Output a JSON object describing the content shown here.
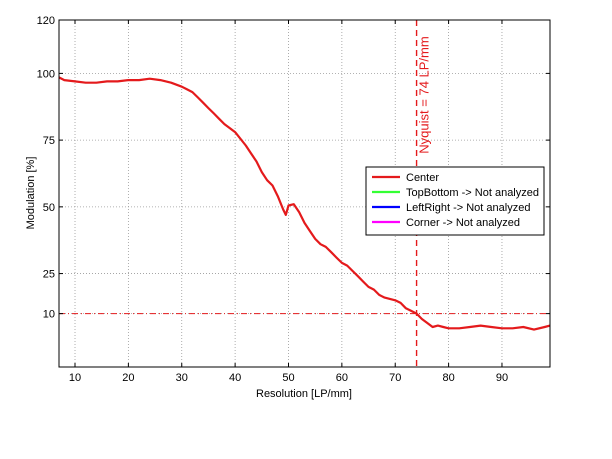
{
  "chart_data": {
    "type": "line",
    "xlabel": "Resolution [LP/mm]",
    "ylabel": "Modulation [%]",
    "xlim": [
      7,
      99
    ],
    "ylim": [
      -10,
      120
    ],
    "x_ticks": [
      10,
      20,
      30,
      40,
      50,
      60,
      70,
      80,
      90
    ],
    "y_ticks": [
      10,
      25,
      50,
      75,
      100,
      120
    ],
    "grid": true,
    "legend_position": "right",
    "reference_line": {
      "y": 10,
      "color": "#e41a1c",
      "style": "dash-dot"
    },
    "nyquist": {
      "x": 74,
      "label": "Nyquist = 74 LP/mm",
      "color": "#e41a1c",
      "style": "dashed"
    },
    "series": [
      {
        "name": "Center",
        "color": "#e41a1c",
        "x": [
          7,
          8,
          10,
          12,
          14,
          16,
          18,
          20,
          22,
          24,
          26,
          28,
          30,
          31,
          32,
          33,
          34,
          35,
          36,
          37,
          38,
          40,
          42,
          43,
          44,
          45,
          46,
          47,
          48,
          49,
          49.5,
          50,
          51,
          52,
          53,
          54,
          55,
          56,
          57,
          58,
          59,
          60,
          61,
          62,
          63,
          64,
          65,
          66,
          67,
          68,
          70,
          71,
          72,
          73,
          74,
          75,
          76,
          77,
          78,
          79,
          80,
          82,
          84,
          86,
          88,
          90,
          92,
          94,
          96,
          98,
          99
        ],
        "y": [
          98.5,
          97.5,
          97,
          96.5,
          96.5,
          97,
          97,
          97.5,
          97.5,
          98,
          97.5,
          96.5,
          95,
          94,
          93,
          91,
          89,
          87,
          85,
          83,
          81,
          78,
          73,
          70,
          67,
          63,
          60,
          58,
          54,
          49,
          47,
          50.5,
          51,
          48,
          44,
          41,
          38,
          36,
          35,
          33,
          31,
          29,
          28,
          26,
          24,
          22,
          20,
          19,
          17,
          16,
          15,
          14,
          12,
          11,
          10,
          8,
          6.5,
          5,
          5.5,
          5,
          4.5,
          4.5,
          5,
          5.5,
          5,
          4.5,
          4.5,
          5,
          4,
          5,
          5.5
        ]
      },
      {
        "name": "TopBottom -> Not analyzed",
        "color": "#33ff33",
        "x": [],
        "y": []
      },
      {
        "name": "LeftRight -> Not analyzed",
        "color": "#0000ff",
        "x": [],
        "y": []
      },
      {
        "name": "Corner -> Not analyzed",
        "color": "#ff00ff",
        "x": [],
        "y": []
      }
    ]
  }
}
